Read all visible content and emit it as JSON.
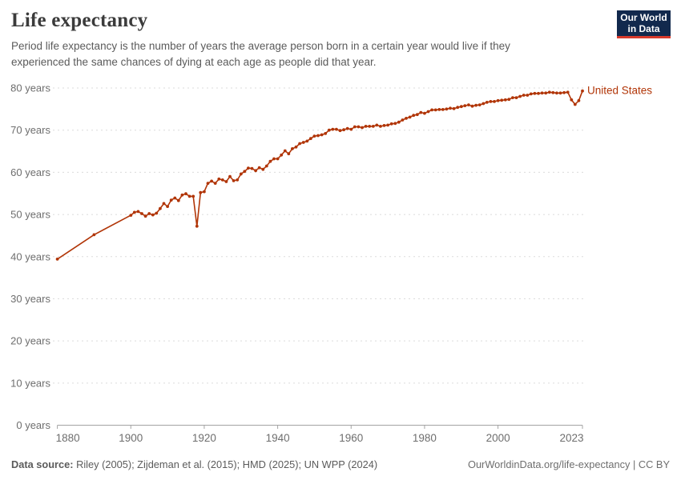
{
  "header": {
    "title": "Life expectancy",
    "subtitle": "Period life expectancy is the number of years the average person born in a certain year would live if they experienced the same chances of dying at each age as people did that year."
  },
  "logo": {
    "line1": "Our World",
    "line2": "in Data",
    "bg_color": "#12294d",
    "accent_color": "#d93a2b"
  },
  "chart_data": {
    "type": "line",
    "title": "Life expectancy",
    "xlabel": "",
    "ylabel": "",
    "xlim": [
      1880,
      2023
    ],
    "ylim": [
      0,
      80
    ],
    "grid": "horizontal-dashed",
    "legend_position": "end-of-line-label",
    "x_ticks": [
      1880,
      1900,
      1920,
      1940,
      1960,
      1980,
      2000,
      2023
    ],
    "y_ticks": [
      0,
      10,
      20,
      30,
      40,
      50,
      60,
      70,
      80
    ],
    "y_tick_suffix": " years",
    "series": [
      {
        "name": "United States",
        "color": "#b13507",
        "x": [
          1880,
          1890,
          1900,
          1901,
          1902,
          1903,
          1904,
          1905,
          1906,
          1907,
          1908,
          1909,
          1910,
          1911,
          1912,
          1913,
          1914,
          1915,
          1916,
          1917,
          1918,
          1919,
          1920,
          1921,
          1922,
          1923,
          1924,
          1925,
          1926,
          1927,
          1928,
          1929,
          1930,
          1931,
          1932,
          1933,
          1934,
          1935,
          1936,
          1937,
          1938,
          1939,
          1940,
          1941,
          1942,
          1943,
          1944,
          1945,
          1946,
          1947,
          1948,
          1949,
          1950,
          1951,
          1952,
          1953,
          1954,
          1955,
          1956,
          1957,
          1958,
          1959,
          1960,
          1961,
          1962,
          1963,
          1964,
          1965,
          1966,
          1967,
          1968,
          1969,
          1970,
          1971,
          1972,
          1973,
          1974,
          1975,
          1976,
          1977,
          1978,
          1979,
          1980,
          1981,
          1982,
          1983,
          1984,
          1985,
          1986,
          1987,
          1988,
          1989,
          1990,
          1991,
          1992,
          1993,
          1994,
          1995,
          1996,
          1997,
          1998,
          1999,
          2000,
          2001,
          2002,
          2003,
          2004,
          2005,
          2006,
          2007,
          2008,
          2009,
          2010,
          2011,
          2012,
          2013,
          2014,
          2015,
          2016,
          2017,
          2018,
          2019,
          2020,
          2021,
          2022,
          2023
        ],
        "values": [
          39.4,
          45.2,
          49.8,
          50.5,
          50.7,
          50.2,
          49.6,
          50.2,
          49.9,
          50.3,
          51.4,
          52.6,
          51.9,
          53.4,
          53.9,
          53.3,
          54.6,
          54.9,
          54.3,
          54.3,
          47.2,
          55.2,
          55.4,
          57.4,
          57.9,
          57.4,
          58.4,
          58.2,
          57.8,
          59.0,
          58.0,
          58.2,
          59.6,
          60.2,
          61.0,
          60.9,
          60.4,
          61.1,
          60.7,
          61.5,
          62.6,
          63.2,
          63.2,
          64.1,
          65.1,
          64.4,
          65.6,
          66.0,
          66.8,
          67.1,
          67.4,
          68.0,
          68.6,
          68.7,
          68.9,
          69.2,
          70.0,
          70.2,
          70.2,
          69.9,
          70.1,
          70.4,
          70.2,
          70.8,
          70.8,
          70.6,
          70.9,
          70.9,
          70.9,
          71.2,
          70.9,
          71.1,
          71.2,
          71.5,
          71.6,
          71.9,
          72.4,
          72.8,
          73.1,
          73.5,
          73.7,
          74.2,
          74.0,
          74.4,
          74.8,
          74.8,
          74.9,
          74.9,
          75.0,
          75.2,
          75.1,
          75.4,
          75.6,
          75.8,
          76.0,
          75.7,
          75.9,
          76.0,
          76.3,
          76.6,
          76.8,
          76.8,
          77.0,
          77.1,
          77.2,
          77.3,
          77.7,
          77.7,
          78.0,
          78.3,
          78.3,
          78.6,
          78.7,
          78.7,
          78.8,
          78.8,
          79.0,
          78.9,
          78.8,
          78.8,
          78.9,
          79.0,
          77.2,
          76.1,
          77.0,
          79.3
        ]
      }
    ],
    "colors": {
      "gridline": "#dbdbdb",
      "axis": "#a3a3a3",
      "tick_label": "#6e6e6e"
    }
  },
  "footer": {
    "source_label": "Data source:",
    "source_text": " Riley (2005); Zijdeman et al. (2015); HMD (2025); UN WPP (2024)",
    "rights": "OurWorldinData.org/life-expectancy | CC BY"
  }
}
